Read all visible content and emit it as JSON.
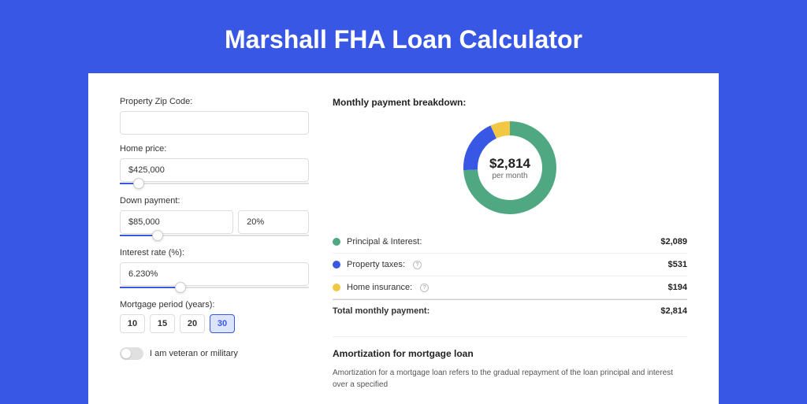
{
  "header": {
    "title": "Marshall FHA Loan Calculator"
  },
  "form": {
    "zip": {
      "label": "Property Zip Code:",
      "value": ""
    },
    "home_price": {
      "label": "Home price:",
      "value": "$425,000",
      "slider_pct": 10
    },
    "down_payment": {
      "label": "Down payment:",
      "value": "$85,000",
      "pct": "20%",
      "slider_pct": 20
    },
    "interest_rate": {
      "label": "Interest rate (%):",
      "value": "6.230%",
      "slider_pct": 32
    },
    "mortgage_period": {
      "label": "Mortgage period (years):",
      "options": [
        "10",
        "15",
        "20",
        "30"
      ],
      "selected": "30"
    },
    "veteran": {
      "label": "I am veteran or military",
      "checked": false
    }
  },
  "breakdown": {
    "title": "Monthly payment breakdown:",
    "center": {
      "amount": "$2,814",
      "sub": "per month"
    },
    "items": [
      {
        "label": "Principal & Interest:",
        "value": "$2,089",
        "color": "#4fa882",
        "pct": 74,
        "help": false
      },
      {
        "label": "Property taxes:",
        "value": "$531",
        "color": "#3857e5",
        "pct": 19,
        "help": true
      },
      {
        "label": "Home insurance:",
        "value": "$194",
        "color": "#f2c744",
        "pct": 7,
        "help": true
      }
    ],
    "total": {
      "label": "Total monthly payment:",
      "value": "$2,814"
    }
  },
  "amortization": {
    "title": "Amortization for mortgage loan",
    "text": "Amortization for a mortgage loan refers to the gradual repayment of the loan principal and interest over a specified"
  },
  "styling": {
    "page_bg": "#3857e5",
    "panel_bg": "#ffffff",
    "donut_size": 120,
    "donut_stroke": 18,
    "donut_radius": 50,
    "donut_circumference": 314.159
  }
}
